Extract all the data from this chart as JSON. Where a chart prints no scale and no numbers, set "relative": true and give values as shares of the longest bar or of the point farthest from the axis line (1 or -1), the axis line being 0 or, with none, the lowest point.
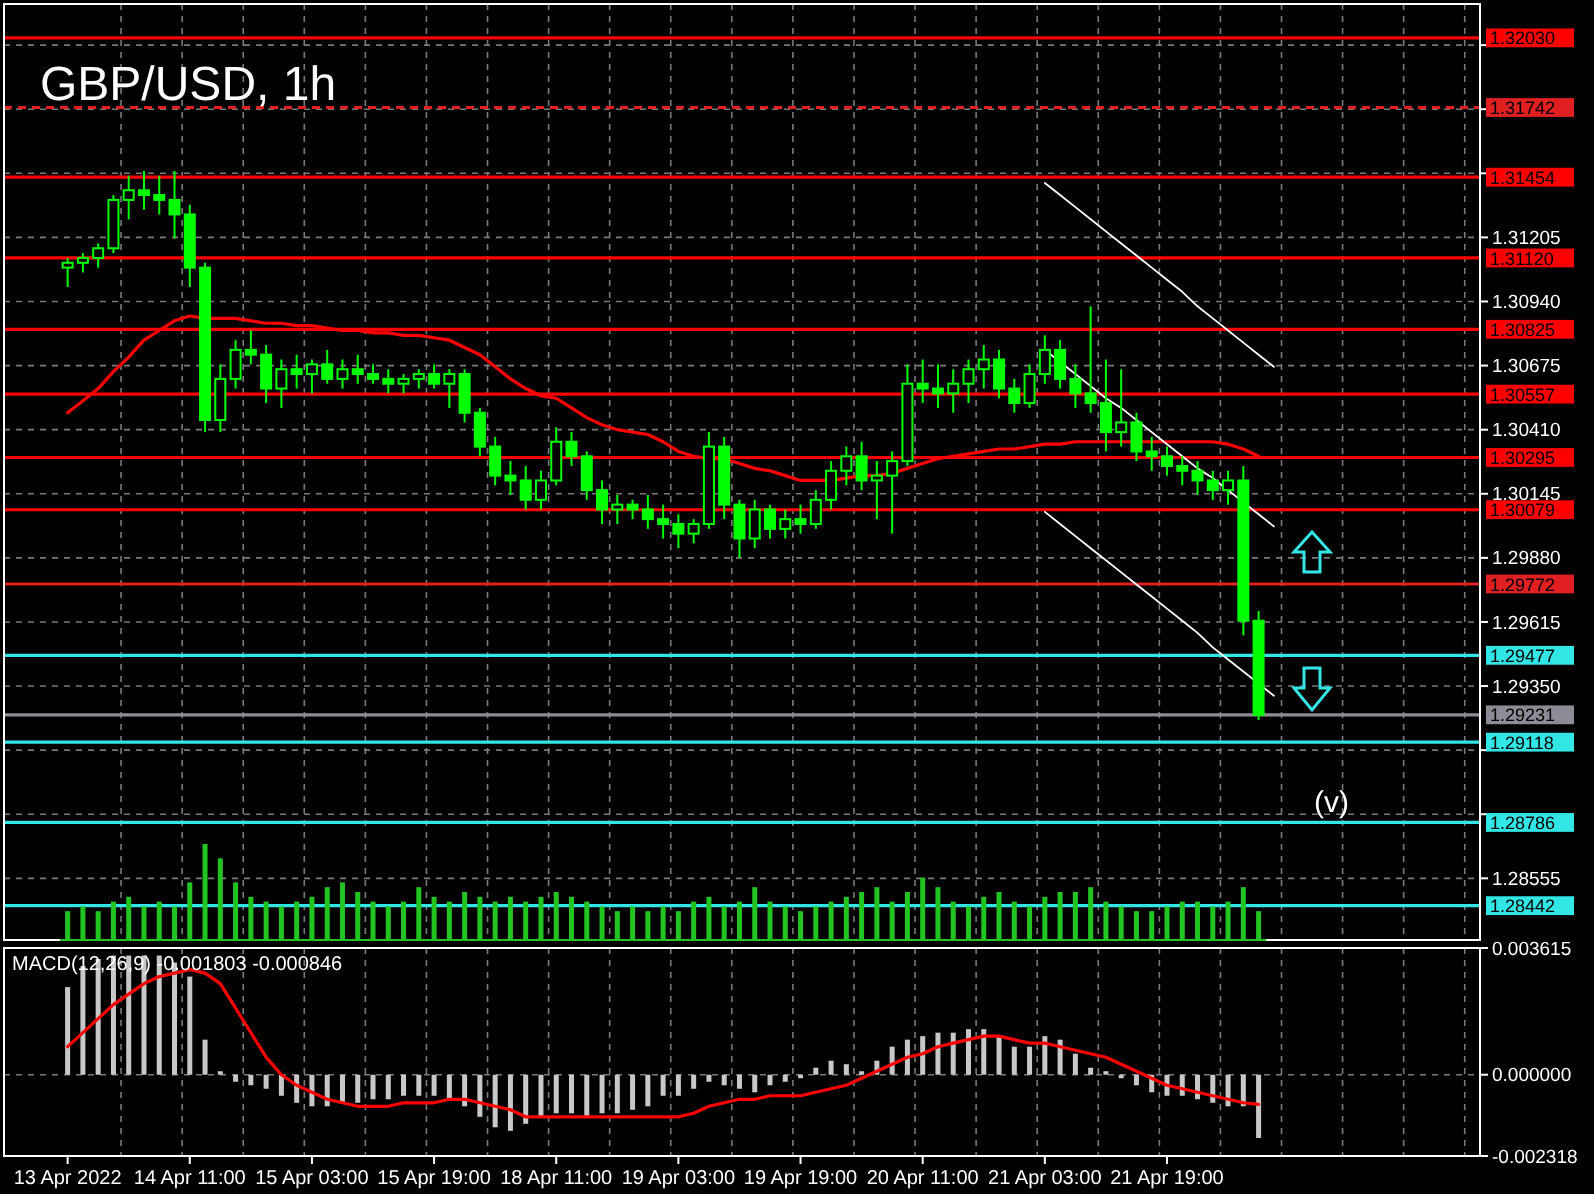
{
  "chart_data": [
    {
      "type": "candlestick",
      "title": "GBP/USD, 1h",
      "color": "#00ff00",
      "categories": [
        null,
        null,
        null,
        null,
        null,
        null,
        null,
        null,
        null,
        null,
        null,
        null,
        null,
        null,
        null,
        null,
        null,
        null,
        null,
        null,
        null,
        null,
        null,
        null,
        null,
        null,
        null,
        null,
        null,
        null,
        null,
        null,
        null,
        null,
        null,
        null,
        null,
        null,
        null,
        null,
        null,
        null,
        null,
        null,
        null,
        null,
        null,
        null,
        null,
        null,
        null,
        null,
        null,
        null,
        null,
        null,
        null,
        null,
        null,
        null,
        null,
        null,
        null,
        null,
        null,
        null,
        null,
        null,
        null,
        null,
        null,
        null,
        null,
        null,
        null,
        null,
        null,
        null,
        null,
        null,
        null,
        null,
        null,
        null,
        null,
        null,
        null,
        null,
        null,
        null,
        null,
        null,
        null
      ],
      "ohlc": [
        [
          1.3108,
          1.3112,
          1.31,
          1.311
        ],
        [
          1.311,
          1.3114,
          1.3106,
          1.3112
        ],
        [
          1.3112,
          1.3118,
          1.3108,
          1.3116
        ],
        [
          1.3116,
          1.3138,
          1.3114,
          1.3136
        ],
        [
          1.3136,
          1.3146,
          1.3128,
          1.314
        ],
        [
          1.314,
          1.3148,
          1.3132,
          1.3138
        ],
        [
          1.3138,
          1.3146,
          1.313,
          1.3136
        ],
        [
          1.3136,
          1.3148,
          1.312,
          1.313
        ],
        [
          1.313,
          1.3134,
          1.31,
          1.3108
        ],
        [
          1.3108,
          1.311,
          1.304,
          1.3045
        ],
        [
          1.3045,
          1.3068,
          1.304,
          1.3062
        ],
        [
          1.3062,
          1.3078,
          1.3058,
          1.3074
        ],
        [
          1.3074,
          1.3082,
          1.3068,
          1.3072
        ],
        [
          1.3072,
          1.3076,
          1.3052,
          1.3058
        ],
        [
          1.3058,
          1.307,
          1.305,
          1.3066
        ],
        [
          1.3066,
          1.3072,
          1.3058,
          1.3064
        ],
        [
          1.3064,
          1.307,
          1.3056,
          1.3068
        ],
        [
          1.3068,
          1.3074,
          1.306,
          1.3062
        ],
        [
          1.3062,
          1.307,
          1.3058,
          1.3066
        ],
        [
          1.3066,
          1.3072,
          1.306,
          1.3064
        ],
        [
          1.3064,
          1.3068,
          1.306,
          1.3062
        ],
        [
          1.3062,
          1.3066,
          1.3056,
          1.306
        ],
        [
          1.306,
          1.3064,
          1.3056,
          1.3062
        ],
        [
          1.3062,
          1.3066,
          1.3058,
          1.3064
        ],
        [
          1.3064,
          1.3068,
          1.3058,
          1.306
        ],
        [
          1.306,
          1.3066,
          1.305,
          1.3064
        ],
        [
          1.3064,
          1.3066,
          1.3044,
          1.3048
        ],
        [
          1.3048,
          1.305,
          1.303,
          1.3034
        ],
        [
          1.3034,
          1.3038,
          1.3018,
          1.3022
        ],
        [
          1.3022,
          1.3028,
          1.3014,
          1.302
        ],
        [
          1.302,
          1.3026,
          1.3008,
          1.3012
        ],
        [
          1.3012,
          1.3024,
          1.3008,
          1.302
        ],
        [
          1.302,
          1.3042,
          1.3018,
          1.3036
        ],
        [
          1.3036,
          1.304,
          1.3026,
          1.303
        ],
        [
          1.303,
          1.3032,
          1.3012,
          1.3016
        ],
        [
          1.3016,
          1.302,
          1.3002,
          1.3008
        ],
        [
          1.3008,
          1.3014,
          1.3002,
          1.301
        ],
        [
          1.301,
          1.3012,
          1.3004,
          1.3008
        ],
        [
          1.3008,
          1.3014,
          1.3,
          1.3004
        ],
        [
          1.3004,
          1.301,
          1.2996,
          1.3002
        ],
        [
          1.3002,
          1.3006,
          1.2992,
          1.2998
        ],
        [
          1.2998,
          1.3004,
          1.2994,
          1.3002
        ],
        [
          1.3002,
          1.304,
          1.3,
          1.3034
        ],
        [
          1.3034,
          1.3038,
          1.3004,
          1.301
        ],
        [
          1.301,
          1.3012,
          1.2988,
          1.2996
        ],
        [
          1.2996,
          1.3012,
          1.2992,
          1.3008
        ],
        [
          1.3008,
          1.301,
          1.2996,
          1.3
        ],
        [
          1.3,
          1.3008,
          1.2996,
          1.3004
        ],
        [
          1.3004,
          1.301,
          1.2998,
          1.3002
        ],
        [
          1.3002,
          1.3016,
          1.3,
          1.3012
        ],
        [
          1.3012,
          1.3028,
          1.3008,
          1.3024
        ],
        [
          1.3024,
          1.3034,
          1.3018,
          1.303
        ],
        [
          1.303,
          1.3036,
          1.3016,
          1.302
        ],
        [
          1.302,
          1.3028,
          1.3004,
          1.3022
        ],
        [
          1.3022,
          1.3032,
          1.2998,
          1.3028
        ],
        [
          1.3028,
          1.3068,
          1.3026,
          1.306
        ],
        [
          1.306,
          1.307,
          1.3052,
          1.3058
        ],
        [
          1.3058,
          1.3068,
          1.305,
          1.3056
        ],
        [
          1.3056,
          1.3066,
          1.3048,
          1.306
        ],
        [
          1.306,
          1.307,
          1.3052,
          1.3066
        ],
        [
          1.3066,
          1.3076,
          1.3058,
          1.307
        ],
        [
          1.307,
          1.3074,
          1.3054,
          1.3058
        ],
        [
          1.3058,
          1.3062,
          1.3048,
          1.3052
        ],
        [
          1.3052,
          1.3068,
          1.305,
          1.3064
        ],
        [
          1.3064,
          1.308,
          1.306,
          1.3074
        ],
        [
          1.3074,
          1.3078,
          1.3058,
          1.3062
        ],
        [
          1.3062,
          1.3068,
          1.305,
          1.3056
        ],
        [
          1.3056,
          1.3092,
          1.3048,
          1.3052
        ],
        [
          1.3052,
          1.307,
          1.3032,
          1.304
        ],
        [
          1.304,
          1.3066,
          1.3034,
          1.3044
        ],
        [
          1.3044,
          1.3048,
          1.3028,
          1.3032
        ],
        [
          1.3032,
          1.3038,
          1.3024,
          1.303
        ],
        [
          1.303,
          1.3034,
          1.3022,
          1.3026
        ],
        [
          1.3026,
          1.303,
          1.3018,
          1.3024
        ],
        [
          1.3024,
          1.3028,
          1.3014,
          1.302
        ],
        [
          1.302,
          1.3024,
          1.3012,
          1.3016
        ],
        [
          1.3016,
          1.3024,
          1.301,
          1.302
        ],
        [
          1.302,
          1.3026,
          1.2956,
          1.2962
        ],
        [
          1.2962,
          1.2966,
          1.2921,
          1.2923
        ],
        null,
        null,
        null,
        null,
        null,
        null,
        null,
        null,
        null,
        null,
        null,
        null,
        null,
        null
      ],
      "series": [
        {
          "type": "line",
          "color": "#ff0000",
          "values": [
            1.3048,
            1.3053,
            1.3058,
            1.3065,
            1.3071,
            1.3078,
            1.3082,
            1.3086,
            1.3088,
            1.3087,
            1.3087,
            1.3087,
            1.3086,
            1.3085,
            1.3085,
            1.3084,
            1.3084,
            1.3083,
            1.3082,
            1.3082,
            1.3081,
            1.3081,
            1.308,
            1.308,
            1.3079,
            1.3078,
            1.3075,
            1.3072,
            1.3067,
            1.3062,
            1.3058,
            1.3055,
            1.3054,
            1.305,
            1.3046,
            1.3043,
            1.3041,
            1.304,
            1.3039,
            1.3036,
            1.3032,
            1.303,
            1.3029,
            1.3029,
            1.3027,
            1.3025,
            1.3024,
            1.3022,
            1.302,
            1.302,
            1.302,
            1.3021,
            1.3022,
            1.3022,
            1.3023,
            1.3025,
            1.3027,
            1.3029,
            1.303,
            1.3031,
            1.3032,
            1.3033,
            1.3033,
            1.3034,
            1.3035,
            1.3035,
            1.3036,
            1.3036,
            1.3036,
            1.3036,
            1.3036,
            1.3036,
            1.3036,
            1.3036,
            1.3036,
            1.3036,
            1.3035,
            1.3033,
            1.303,
            null,
            null,
            null,
            null,
            null,
            null,
            null,
            null,
            null,
            null,
            null,
            null,
            null,
            null
          ]
        },
        {
          "type": "line",
          "color": "#ffffff",
          "values": [
            null,
            null,
            null,
            null,
            null,
            null,
            null,
            null,
            null,
            null,
            null,
            null,
            null,
            null,
            null,
            null,
            null,
            null,
            null,
            null,
            null,
            null,
            null,
            null,
            null,
            null,
            null,
            null,
            null,
            null,
            null,
            null,
            null,
            null,
            null,
            null,
            null,
            null,
            null,
            null,
            null,
            null,
            null,
            null,
            null,
            null,
            null,
            null,
            null,
            null,
            null,
            null,
            null,
            null,
            null,
            null,
            null,
            null,
            null,
            null,
            null,
            null,
            null,
            null,
            1.3143,
            1.3138,
            1.3133,
            1.3128,
            1.3123,
            1.3118,
            1.3113,
            1.3108,
            1.3103,
            1.3098,
            1.3092,
            1.3087,
            1.3082,
            1.3077,
            1.3072,
            1.3067,
            null,
            null,
            null,
            null,
            null,
            null,
            null,
            null,
            null,
            null,
            null,
            null,
            null
          ]
        },
        {
          "type": "line",
          "color": "#ffffff",
          "values": [
            null,
            null,
            null,
            null,
            null,
            null,
            null,
            null,
            null,
            null,
            null,
            null,
            null,
            null,
            null,
            null,
            null,
            null,
            null,
            null,
            null,
            null,
            null,
            null,
            null,
            null,
            null,
            null,
            null,
            null,
            null,
            null,
            null,
            null,
            null,
            null,
            null,
            null,
            null,
            null,
            null,
            null,
            null,
            null,
            null,
            null,
            null,
            null,
            null,
            null,
            null,
            null,
            null,
            null,
            null,
            null,
            null,
            null,
            null,
            null,
            null,
            null,
            null,
            null,
            1.3074,
            1.3069,
            1.3064,
            1.3059,
            1.3054,
            1.305,
            1.3045,
            1.304,
            1.3035,
            1.303,
            1.3025,
            1.3021,
            1.3016,
            1.3011,
            1.3006,
            1.3001,
            null,
            null,
            null,
            null,
            null,
            null,
            null,
            null,
            null,
            null,
            null,
            null,
            null
          ]
        },
        {
          "type": "line",
          "color": "#ffffff",
          "values": [
            null,
            null,
            null,
            null,
            null,
            null,
            null,
            null,
            null,
            null,
            null,
            null,
            null,
            null,
            null,
            null,
            null,
            null,
            null,
            null,
            null,
            null,
            null,
            null,
            null,
            null,
            null,
            null,
            null,
            null,
            null,
            null,
            null,
            null,
            null,
            null,
            null,
            null,
            null,
            null,
            null,
            null,
            null,
            null,
            null,
            null,
            null,
            null,
            null,
            null,
            null,
            null,
            null,
            null,
            null,
            null,
            null,
            null,
            null,
            null,
            null,
            null,
            null,
            null,
            1.3007,
            1.3002,
            1.2997,
            1.2992,
            1.2987,
            1.2982,
            1.2977,
            1.2972,
            1.2967,
            1.2962,
            1.2957,
            1.2951,
            1.2946,
            1.2941,
            1.2936,
            1.2931,
            null,
            null,
            null,
            null,
            null,
            null,
            null,
            null,
            null,
            null,
            null,
            null,
            null
          ]
        }
      ],
      "ylim": [
        1.283,
        1.3217
      ],
      "yticks": [
        1.28555,
        {
          "value": 1.2882,
          "label": null
        },
        {
          "value": 1.29085,
          "label": null
        },
        {
          "value": 1.2935,
          "label": "1.29350"
        },
        1.29615,
        {
          "value": 1.2988,
          "label": "1.29880"
        },
        1.30145,
        {
          "value": 1.3041,
          "label": "1.30410"
        },
        1.30675,
        {
          "value": 1.3094,
          "label": "1.30940"
        },
        1.31205,
        {
          "value": 1.3147,
          "label": null
        },
        {
          "value": 1.31735,
          "label": null
        },
        {
          "value": 1.32,
          "label": null
        }
      ],
      "ref_lines": [
        {
          "axis": "y",
          "value": 1.3203,
          "label": "1.32030",
          "color": "#ff0000"
        },
        {
          "axis": "y",
          "value": 1.31742,
          "label": "1.31742",
          "color": "#e02020",
          "line_style": "dashed"
        },
        {
          "axis": "y",
          "value": 1.31454,
          "label": "1.31454",
          "color": "#ff0000"
        },
        {
          "axis": "y",
          "value": 1.3112,
          "label": "1.31120",
          "color": "#ff0000"
        },
        {
          "axis": "y",
          "value": 1.30825,
          "label": "1.30825",
          "color": "#ff0000"
        },
        {
          "axis": "y",
          "value": 1.30557,
          "label": "1.30557",
          "color": "#ff0000"
        },
        {
          "axis": "y",
          "value": 1.30295,
          "label": "1.30295",
          "color": "#ff0000"
        },
        {
          "axis": "y",
          "value": 1.30079,
          "label": "1.30079",
          "color": "#ff0000"
        },
        {
          "axis": "y",
          "value": 1.29772,
          "label": "1.29772",
          "color": "#e02020"
        },
        {
          "axis": "y",
          "value": 1.29477,
          "label": "1.29477",
          "color": "#33e6e6"
        },
        {
          "axis": "y",
          "value": 1.29231,
          "label": "1.29231",
          "color": "#8c8c96"
        },
        {
          "axis": "y",
          "value": 1.29118,
          "label": "1.29118",
          "color": "#33e6e6"
        },
        {
          "axis": "y",
          "value": 1.28786,
          "label": "1.28786",
          "color": "#33e6e6"
        },
        {
          "axis": "y",
          "value": 1.28442,
          "label": "1.28442",
          "color": "#33e6e6"
        }
      ],
      "annotations": [
        "(v)"
      ],
      "grid": true,
      "tick_labels": "y"
    },
    {
      "type": "bar",
      "relative": true,
      "color": "#22c422",
      "tick_labels": false,
      "categories": [
        null,
        null,
        null,
        null,
        null,
        null,
        null,
        null,
        null,
        null,
        null,
        null,
        null,
        null,
        null,
        null,
        null,
        null,
        null,
        null,
        null,
        null,
        null,
        null,
        null,
        null,
        null,
        null,
        null,
        null,
        null,
        null,
        null,
        null,
        null,
        null,
        null,
        null,
        null,
        null,
        null,
        null,
        null,
        null,
        null,
        null,
        null,
        null,
        null,
        null,
        null,
        null,
        null,
        null,
        null,
        null,
        null,
        null,
        null,
        null,
        null,
        null,
        null,
        null,
        null,
        null,
        null,
        null,
        null,
        null,
        null,
        null,
        null,
        null,
        null,
        null,
        null,
        null,
        null
      ],
      "values": [
        0.3,
        0.35,
        0.3,
        0.4,
        0.45,
        0.35,
        0.4,
        0.35,
        0.6,
        1.0,
        0.85,
        0.6,
        0.45,
        0.4,
        0.35,
        0.4,
        0.45,
        0.55,
        0.6,
        0.5,
        0.4,
        0.35,
        0.4,
        0.55,
        0.45,
        0.4,
        0.5,
        0.45,
        0.4,
        0.45,
        0.4,
        0.45,
        0.5,
        0.45,
        0.4,
        0.35,
        0.3,
        0.35,
        0.3,
        0.35,
        0.3,
        0.4,
        0.45,
        0.35,
        0.4,
        0.55,
        0.4,
        0.35,
        0.3,
        0.35,
        0.4,
        0.45,
        0.5,
        0.55,
        0.4,
        0.5,
        0.65,
        0.55,
        0.4,
        0.35,
        0.45,
        0.5,
        0.4,
        0.35,
        0.45,
        0.5,
        0.5,
        0.55,
        0.4,
        0.35,
        0.3,
        0.3,
        0.35,
        0.4,
        0.4,
        0.35,
        0.4,
        0.55,
        0.3
      ]
    },
    {
      "type": "bar",
      "title": "MACD(12,26,9) -0.001803 -0.000846",
      "categories": [
        "13 Apr 2022",
        null,
        null,
        null,
        null,
        null,
        null,
        null,
        "14 Apr 11:00",
        null,
        null,
        null,
        null,
        null,
        null,
        null,
        "15 Apr 03:00",
        null,
        null,
        null,
        null,
        null,
        null,
        null,
        "15 Apr 19:00",
        null,
        null,
        null,
        null,
        null,
        null,
        null,
        "18 Apr 11:00",
        null,
        null,
        null,
        null,
        null,
        null,
        null,
        "19 Apr 03:00",
        null,
        null,
        null,
        null,
        null,
        null,
        null,
        "19 Apr 19:00",
        null,
        null,
        null,
        null,
        null,
        null,
        null,
        "20 Apr 11:00",
        null,
        null,
        null,
        null,
        null,
        null,
        null,
        "21 Apr 03:00",
        null,
        null,
        null,
        null,
        null,
        null,
        null,
        "21 Apr 19:00",
        null,
        null,
        null,
        null,
        null,
        null,
        null,
        null,
        null,
        null,
        null,
        null,
        null,
        null,
        null,
        null,
        null,
        null,
        null,
        null
      ],
      "series": [
        {
          "type": "bar",
          "color": "#c8c8c8",
          "values": [
            0.0025,
            0.0031,
            0.0033,
            0.0034,
            0.0034,
            0.0034,
            0.0034,
            0.0032,
            0.0028,
            0.001,
            0.0001,
            -0.0002,
            -0.0003,
            -0.0004,
            -0.0006,
            -0.0008,
            -0.0009,
            -0.0009,
            -0.0008,
            -0.0008,
            -0.0007,
            -0.0007,
            -0.0006,
            -0.0006,
            -0.0006,
            -0.0007,
            -0.0009,
            -0.0012,
            -0.0015,
            -0.0016,
            -0.0014,
            -0.0012,
            -0.0011,
            -0.0011,
            -0.0012,
            -0.0011,
            -0.0011,
            -0.001,
            -0.0009,
            -0.0006,
            -0.0006,
            -0.0004,
            -0.0002,
            -0.0003,
            -0.0004,
            -0.0005,
            -0.0003,
            -0.0002,
            -0.0001,
            0.0002,
            0.0004,
            0.0003,
            0.0001,
            0.0004,
            0.0008,
            0.001,
            0.0011,
            0.0012,
            0.0012,
            0.0013,
            0.0013,
            0.0011,
            0.0008,
            0.0008,
            0.0011,
            0.001,
            0.0006,
            0.0002,
            0.0001,
            -0.0001,
            -0.0003,
            -0.0005,
            -0.0006,
            -0.0006,
            -0.0007,
            -0.0008,
            -0.0009,
            -0.0009,
            -0.001803,
            null,
            null,
            null,
            null,
            null,
            null,
            null,
            null,
            null,
            null,
            null,
            null,
            null,
            null
          ]
        },
        {
          "type": "line",
          "color": "#ff0000",
          "values": [
            0.0008,
            0.0012,
            0.0016,
            0.002,
            0.0023,
            0.0026,
            0.0028,
            0.0029,
            0.003,
            0.0029,
            0.0026,
            0.0019,
            0.0012,
            0.0005,
            0.0,
            -0.0003,
            -0.0005,
            -0.0007,
            -0.0008,
            -0.0009,
            -0.0009,
            -0.0009,
            -0.0008,
            -0.0008,
            -0.0008,
            -0.0007,
            -0.0007,
            -0.0008,
            -0.0009,
            -0.001,
            -0.0012,
            -0.0012,
            -0.0012,
            -0.0012,
            -0.0012,
            -0.0012,
            -0.0012,
            -0.0012,
            -0.0012,
            -0.0012,
            -0.0012,
            -0.0011,
            -0.0009,
            -0.0008,
            -0.0007,
            -0.0007,
            -0.0006,
            -0.0006,
            -0.0006,
            -0.0005,
            -0.0004,
            -0.0003,
            -0.0001,
            0.0001,
            0.0003,
            0.0005,
            0.0006,
            0.0008,
            0.0009,
            0.001,
            0.0011,
            0.0011,
            0.001,
            0.0009,
            0.0009,
            0.0008,
            0.0007,
            0.0006,
            0.0005,
            0.0003,
            0.0001,
            -0.0001,
            -0.0003,
            -0.0004,
            -0.0005,
            -0.0006,
            -0.0007,
            -0.0008,
            -0.000846,
            null,
            null,
            null,
            null,
            null,
            null,
            null,
            null,
            null,
            null,
            null,
            null,
            null,
            null
          ]
        }
      ],
      "ylim": [
        -0.002318,
        0.003615
      ],
      "yticks": [
        -0.002318,
        {
          "value": 0,
          "label": "0.000000"
        },
        0.003615
      ],
      "grid": true
    }
  ]
}
